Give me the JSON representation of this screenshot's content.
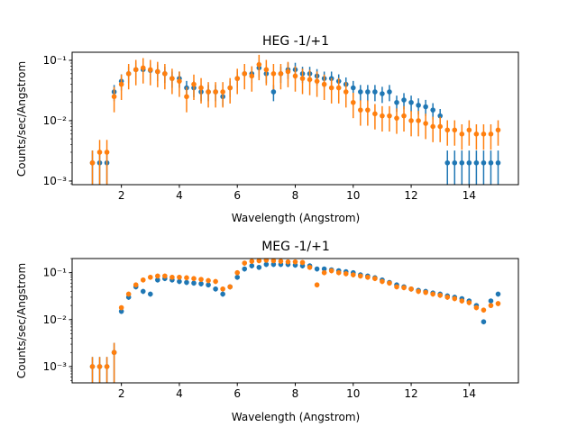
{
  "colors": {
    "series_0": "#1f77b4",
    "series_1": "#ff7f0e"
  },
  "chart_data": [
    {
      "type": "scatter",
      "title": "HEG -1/+1",
      "xlabel": "Wavelength (Angstrom)",
      "ylabel": "Counts/sec/Angstrom",
      "xscale": "linear",
      "yscale": "log",
      "xlim": [
        0.3,
        15.7
      ],
      "ylim": [
        0.00087,
        0.136
      ],
      "xticks": [
        2,
        4,
        6,
        8,
        10,
        12,
        14
      ],
      "xtick_labels": [
        "2",
        "4",
        "6",
        "8",
        "10",
        "12",
        "14"
      ],
      "yticks": [
        0.001,
        0.01,
        0.1
      ],
      "ytick_labels": [
        "10⁻³",
        "10⁻²",
        "10⁻¹"
      ],
      "grid": false,
      "error_bars": true,
      "x": [
        1.0,
        1.25,
        1.5,
        1.75,
        2.0,
        2.25,
        2.5,
        2.75,
        3.0,
        3.25,
        3.5,
        3.75,
        4.0,
        4.25,
        4.5,
        4.75,
        5.0,
        5.25,
        5.5,
        5.75,
        6.0,
        6.25,
        6.5,
        6.75,
        7.0,
        7.25,
        7.5,
        7.75,
        8.0,
        8.25,
        8.5,
        8.75,
        9.0,
        9.25,
        9.5,
        9.75,
        10.0,
        10.25,
        10.5,
        10.75,
        11.0,
        11.25,
        11.5,
        11.75,
        12.0,
        12.25,
        12.5,
        12.75,
        13.0,
        13.25,
        13.5,
        13.75,
        14.0,
        14.25,
        14.5,
        14.75,
        15.0
      ],
      "series": [
        {
          "color": "#1f77b4",
          "rel_err": 0.3,
          "y": [
            0.002,
            0.002,
            0.002,
            0.03,
            0.045,
            0.06,
            0.07,
            0.07,
            0.068,
            0.065,
            0.06,
            0.05,
            0.05,
            0.035,
            0.035,
            0.03,
            0.03,
            0.03,
            0.025,
            0.035,
            0.05,
            0.06,
            0.06,
            0.075,
            0.06,
            0.03,
            0.06,
            0.07,
            0.07,
            0.06,
            0.06,
            0.055,
            0.05,
            0.05,
            0.045,
            0.04,
            0.035,
            0.03,
            0.03,
            0.03,
            0.028,
            0.03,
            0.02,
            0.022,
            0.02,
            0.018,
            0.017,
            0.015,
            0.012,
            0.002,
            0.002,
            0.002,
            0.002,
            0.002,
            0.002,
            0.002,
            0.002
          ]
        },
        {
          "color": "#ff7f0e",
          "rel_err": 0.45,
          "y": [
            0.002,
            0.003,
            0.003,
            0.025,
            0.04,
            0.06,
            0.07,
            0.075,
            0.07,
            0.065,
            0.06,
            0.05,
            0.045,
            0.025,
            0.04,
            0.035,
            0.03,
            0.03,
            0.03,
            0.035,
            0.05,
            0.06,
            0.055,
            0.085,
            0.07,
            0.06,
            0.06,
            0.065,
            0.055,
            0.05,
            0.048,
            0.045,
            0.04,
            0.035,
            0.035,
            0.03,
            0.02,
            0.015,
            0.015,
            0.013,
            0.012,
            0.012,
            0.011,
            0.012,
            0.01,
            0.01,
            0.009,
            0.008,
            0.008,
            0.007,
            0.007,
            0.006,
            0.007,
            0.006,
            0.006,
            0.006,
            0.007
          ]
        }
      ]
    },
    {
      "type": "scatter",
      "title": "MEG -1/+1",
      "xlabel": "Wavelength (Angstrom)",
      "ylabel": "Counts/sec/Angstrom",
      "xscale": "linear",
      "yscale": "log",
      "xlim": [
        0.3,
        15.7
      ],
      "ylim": [
        0.00045,
        0.2
      ],
      "xticks": [
        2,
        4,
        6,
        8,
        10,
        12,
        14
      ],
      "xtick_labels": [
        "2",
        "4",
        "6",
        "8",
        "10",
        "12",
        "14"
      ],
      "yticks": [
        0.001,
        0.01,
        0.1
      ],
      "ytick_labels": [
        "10⁻³",
        "10⁻²",
        "10⁻¹"
      ],
      "grid": false,
      "error_bars": true,
      "x": [
        1.0,
        1.25,
        1.5,
        1.75,
        2.0,
        2.25,
        2.5,
        2.75,
        3.0,
        3.25,
        3.5,
        3.75,
        4.0,
        4.25,
        4.5,
        4.75,
        5.0,
        5.25,
        5.5,
        5.75,
        6.0,
        6.25,
        6.5,
        6.75,
        7.0,
        7.25,
        7.5,
        7.75,
        8.0,
        8.25,
        8.5,
        8.75,
        9.0,
        9.25,
        9.5,
        9.75,
        10.0,
        10.25,
        10.5,
        10.75,
        11.0,
        11.25,
        11.5,
        11.75,
        12.0,
        12.25,
        12.5,
        12.75,
        13.0,
        13.25,
        13.5,
        13.75,
        14.0,
        14.25,
        14.5,
        14.75,
        15.0
      ],
      "series": [
        {
          "color": "#1f77b4",
          "rel_err": 0.12,
          "y": [
            0.001,
            0.001,
            0.001,
            0.002,
            0.015,
            0.03,
            0.05,
            0.04,
            0.035,
            0.07,
            0.075,
            0.07,
            0.065,
            0.062,
            0.06,
            0.058,
            0.055,
            0.045,
            0.035,
            0.05,
            0.08,
            0.12,
            0.14,
            0.13,
            0.15,
            0.15,
            0.15,
            0.15,
            0.145,
            0.14,
            0.14,
            0.12,
            0.12,
            0.115,
            0.11,
            0.105,
            0.1,
            0.09,
            0.085,
            0.078,
            0.07,
            0.062,
            0.055,
            0.05,
            0.045,
            0.042,
            0.04,
            0.037,
            0.035,
            0.032,
            0.03,
            0.028,
            0.025,
            0.02,
            0.009,
            0.025,
            0.035
          ]
        },
        {
          "color": "#ff7f0e",
          "rel_err": 0.12,
          "y": [
            0.001,
            0.001,
            0.001,
            0.002,
            0.018,
            0.035,
            0.055,
            0.07,
            0.08,
            0.085,
            0.085,
            0.08,
            0.08,
            0.078,
            0.075,
            0.072,
            0.068,
            0.065,
            0.045,
            0.05,
            0.1,
            0.16,
            0.175,
            0.18,
            0.185,
            0.18,
            0.175,
            0.17,
            0.17,
            0.165,
            0.13,
            0.055,
            0.1,
            0.11,
            0.1,
            0.095,
            0.09,
            0.085,
            0.08,
            0.075,
            0.065,
            0.06,
            0.05,
            0.048,
            0.045,
            0.04,
            0.038,
            0.035,
            0.033,
            0.03,
            0.028,
            0.025,
            0.023,
            0.018,
            0.016,
            0.02,
            0.022
          ]
        }
      ]
    }
  ]
}
